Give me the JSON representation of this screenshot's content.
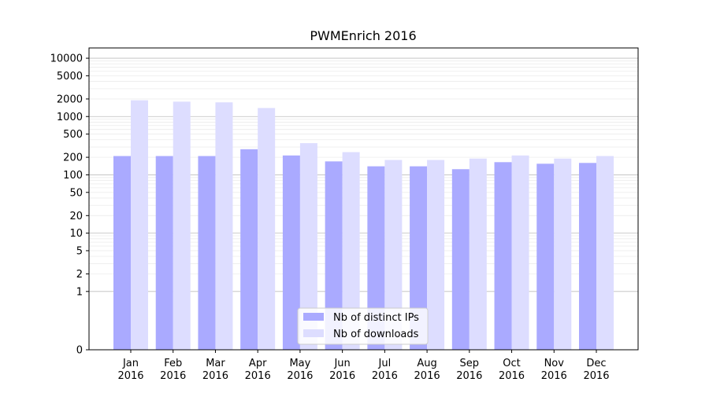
{
  "chart_data": {
    "type": "bar",
    "title": "PWMEnrich 2016",
    "xlabel": "",
    "ylabel": "",
    "yscale": "symlog",
    "ylim": [
      0,
      15000
    ],
    "yticks": [
      0,
      1,
      2,
      5,
      10,
      20,
      50,
      100,
      200,
      500,
      1000,
      2000,
      5000,
      10000
    ],
    "grid": "horizontal",
    "legend_position": "bottom-center",
    "categories": [
      {
        "month": "Jan",
        "year": "2016"
      },
      {
        "month": "Feb",
        "year": "2016"
      },
      {
        "month": "Mar",
        "year": "2016"
      },
      {
        "month": "Apr",
        "year": "2016"
      },
      {
        "month": "May",
        "year": "2016"
      },
      {
        "month": "Jun",
        "year": "2016"
      },
      {
        "month": "Jul",
        "year": "2016"
      },
      {
        "month": "Aug",
        "year": "2016"
      },
      {
        "month": "Sep",
        "year": "2016"
      },
      {
        "month": "Oct",
        "year": "2016"
      },
      {
        "month": "Nov",
        "year": "2016"
      },
      {
        "month": "Dec",
        "year": "2016"
      }
    ],
    "series": [
      {
        "name": "Nb of distinct IPs",
        "color": "#aaaaff",
        "values": [
          210,
          210,
          210,
          275,
          215,
          170,
          140,
          140,
          125,
          165,
          155,
          160
        ]
      },
      {
        "name": "Nb of downloads",
        "color": "#ddddff",
        "values": [
          1900,
          1800,
          1750,
          1400,
          350,
          245,
          180,
          180,
          190,
          215,
          190,
          210
        ]
      }
    ]
  }
}
